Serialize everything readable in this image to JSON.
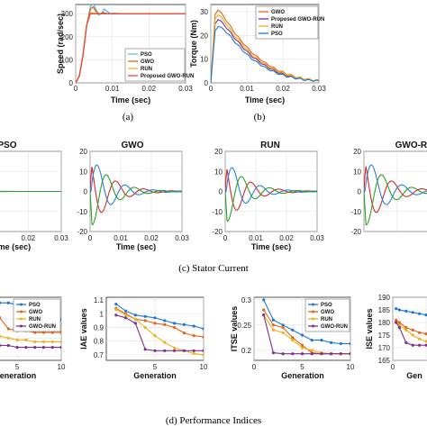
{
  "captions": {
    "a": "(a)",
    "b": "(b)",
    "c": "(c) Stator Current",
    "d": "(d) Performance Indices"
  },
  "colors": {
    "PSO": "#1f77d4",
    "GWO": "#e5631a",
    "RUN": "#edb120",
    "GWO-RUN": "#7e2f8e",
    "phaseA": "#d62728",
    "phaseB": "#2c7fd4",
    "phaseC": "#2ca02c",
    "speedPSO": "#4dbeee",
    "speedFinal": "#e64a3c"
  },
  "chart_data": [
    {
      "id": "speed",
      "type": "line",
      "xlabel": "Time (sec)",
      "ylabel": "Speed (rad/sec)",
      "xticks": [
        "0",
        "0.01",
        "0.02",
        "0.03"
      ],
      "yticks": [
        "0",
        "100",
        "200",
        "300"
      ],
      "xlim": [
        0,
        0.03
      ],
      "ylim": [
        0,
        340
      ],
      "grid": true,
      "legend": [
        "PSO",
        "GWO",
        "RUN",
        "Proposed GWO-RUN"
      ],
      "legend_position": "bottom-right",
      "series": [
        {
          "name": "PSO",
          "x": [
            0,
            0.001,
            0.002,
            0.003,
            0.004,
            0.0048,
            0.0055,
            0.0062,
            0.007,
            0.0078,
            0.0086,
            0.0095,
            0.0105,
            0.012,
            0.03
          ],
          "y": [
            0,
            30,
            120,
            250,
            330,
            345,
            320,
            295,
            300,
            320,
            310,
            300,
            302,
            300,
            300
          ]
        },
        {
          "name": "GWO",
          "x": [
            0,
            0.001,
            0.002,
            0.003,
            0.004,
            0.0048,
            0.0055,
            0.0065,
            0.0075,
            0.0085,
            0.03
          ],
          "y": [
            0,
            30,
            120,
            250,
            320,
            330,
            310,
            298,
            305,
            300,
            300
          ]
        },
        {
          "name": "RUN",
          "x": [
            0,
            0.001,
            0.002,
            0.003,
            0.004,
            0.0048,
            0.006,
            0.03
          ],
          "y": [
            0,
            30,
            120,
            250,
            305,
            302,
            300,
            300
          ]
        },
        {
          "name": "Proposed GWO-RUN",
          "x": [
            0,
            0.001,
            0.002,
            0.003,
            0.004,
            0.0045,
            0.03
          ],
          "y": [
            0,
            30,
            120,
            250,
            300,
            300,
            300
          ]
        }
      ]
    },
    {
      "id": "torque",
      "type": "line",
      "xlabel": "Time (sec)",
      "ylabel": "Torque (Nm)",
      "xticks": [
        "0",
        "0.01",
        "0.02",
        "0.03"
      ],
      "yticks": [
        "0",
        "10",
        "20",
        "30"
      ],
      "xlim": [
        0,
        0.03
      ],
      "ylim": [
        0,
        33
      ],
      "grid": true,
      "legend": [
        "GWO",
        "Proposed GWO-RUN",
        "RUN",
        "PSO"
      ],
      "legend_position": "top-right",
      "series": [
        {
          "name": "GWO",
          "x": [
            0,
            0.0012,
            0.002,
            0.004,
            0.006,
            0.008,
            0.01,
            0.012,
            0.015,
            0.018,
            0.021,
            0.024,
            0.027,
            0.03
          ],
          "y": [
            0,
            29,
            31,
            27,
            22.5,
            18.5,
            15,
            12,
            8.5,
            5.8,
            3.8,
            2.4,
            1.5,
            1
          ]
        },
        {
          "name": "Proposed GWO-RUN",
          "x": [
            0,
            0.0012,
            0.002,
            0.004,
            0.006,
            0.008,
            0.01,
            0.012,
            0.015,
            0.018,
            0.021,
            0.024,
            0.027,
            0.03
          ],
          "y": [
            0,
            25,
            27,
            24,
            20,
            16.5,
            13.2,
            10.5,
            7.3,
            4.9,
            3.2,
            2.1,
            1.3,
            0.9
          ]
        },
        {
          "name": "RUN",
          "x": [
            0,
            0.0012,
            0.002,
            0.004,
            0.006,
            0.008,
            0.01,
            0.012,
            0.015,
            0.018,
            0.021,
            0.024,
            0.027,
            0.03
          ],
          "y": [
            0,
            27,
            29,
            25.5,
            21,
            17.5,
            14,
            11.2,
            7.8,
            5.3,
            3.5,
            2.3,
            1.4,
            1
          ]
        },
        {
          "name": "PSO",
          "x": [
            0,
            0.0012,
            0.002,
            0.004,
            0.006,
            0.008,
            0.01,
            0.012,
            0.015,
            0.018,
            0.021,
            0.024,
            0.027,
            0.03
          ],
          "y": [
            0,
            22,
            24,
            22,
            18.5,
            15,
            12,
            9.5,
            6.5,
            4.3,
            2.8,
            1.8,
            1.1,
            0.8
          ]
        }
      ]
    },
    {
      "id": "current-pso",
      "type": "line",
      "title": "PSO",
      "xlabel": "Time (sec)",
      "xticks": [
        "0.02",
        "0.03"
      ],
      "decay": 0.0055,
      "amplitude": 0.55,
      "grid": true
    },
    {
      "id": "current-gwo",
      "type": "line",
      "title": "GWO",
      "xlabel": "Time (sec)",
      "xticks": [
        "0",
        "0.01",
        "0.02",
        "0.03"
      ],
      "yticks": [
        "-20",
        "-10",
        "0",
        "10",
        "20"
      ],
      "ylim": [
        -20,
        20
      ],
      "amplitude": 19,
      "decay": 0.0065,
      "grid": true
    },
    {
      "id": "current-run",
      "type": "line",
      "title": "RUN",
      "xlabel": "Time (sec)",
      "xticks": [
        "0",
        "0.01",
        "0.02",
        "0.03"
      ],
      "yticks": [
        "-20",
        "-10",
        "0",
        "10",
        "20"
      ],
      "ylim": [
        -20,
        20
      ],
      "amplitude": 17,
      "decay": 0.0065,
      "grid": true
    },
    {
      "id": "current-gworun",
      "type": "line",
      "title": "GWO-RU",
      "xlabel": "Time (sec)",
      "yticks": [
        "-20",
        "-10",
        "0",
        "10",
        "20"
      ],
      "ylim": [
        -20,
        20
      ],
      "amplitude": 19,
      "decay": 0.0065,
      "grid": true
    },
    {
      "id": "perf-partial",
      "type": "line",
      "xlabel": "eneration",
      "xticks": [
        "5",
        "10"
      ],
      "xlim": [
        1,
        10
      ],
      "ylim": [
        0.28,
        0.62
      ],
      "grid": true,
      "legend": [
        "PSO",
        "GWO",
        "RUN",
        "GWO-RUN"
      ],
      "legend_position": "top-right",
      "series": [
        {
          "name": "PSO",
          "x": [
            1,
            2,
            3,
            4,
            5,
            6,
            7,
            8,
            9,
            10
          ],
          "y": [
            0.62,
            0.6,
            0.59,
            0.59,
            0.58,
            0.56,
            0.55,
            0.54,
            0.52,
            0.5
          ]
        },
        {
          "name": "GWO",
          "x": [
            1,
            2,
            3,
            4,
            5,
            6,
            7,
            8,
            9,
            10
          ],
          "y": [
            0.53,
            0.52,
            0.51,
            0.45,
            0.44,
            0.44,
            0.43,
            0.43,
            0.43,
            0.43
          ]
        },
        {
          "name": "RUN",
          "x": [
            1,
            2,
            3,
            4,
            5,
            6,
            7,
            8,
            9,
            10
          ],
          "y": [
            0.43,
            0.42,
            0.41,
            0.4,
            0.39,
            0.39,
            0.38,
            0.38,
            0.38,
            0.38
          ]
        },
        {
          "name": "GWO-RUN",
          "x": [
            1,
            2,
            3,
            4,
            5,
            6,
            7,
            8,
            9,
            10
          ],
          "y": [
            0.38,
            0.37,
            0.36,
            0.36,
            0.35,
            0.35,
            0.35,
            0.35,
            0.35,
            0.35
          ]
        }
      ]
    },
    {
      "id": "iae",
      "type": "line",
      "xlabel": "Generation",
      "ylabel": "IAE values",
      "xticks": [
        "5",
        "10"
      ],
      "yticks": [
        "0.7",
        "0.8",
        "0.9",
        "1",
        "1.1"
      ],
      "xlim": [
        0,
        10
      ],
      "ylim": [
        0.66,
        1.12
      ],
      "grid": true,
      "series": [
        {
          "name": "PSO",
          "x": [
            1,
            2,
            3,
            4,
            5,
            6,
            7,
            8,
            9,
            10
          ],
          "y": [
            1.07,
            1.02,
            0.99,
            0.98,
            0.97,
            0.95,
            0.93,
            0.92,
            0.91,
            0.89
          ]
        },
        {
          "name": "GWO",
          "x": [
            1,
            2,
            3,
            4,
            5,
            6,
            7,
            8,
            9,
            10
          ],
          "y": [
            1.04,
            1.0,
            0.96,
            0.95,
            0.93,
            0.92,
            0.9,
            0.86,
            0.84,
            0.83
          ]
        },
        {
          "name": "RUN",
          "x": [
            1,
            2,
            3,
            4,
            5,
            6,
            7,
            8,
            9,
            10
          ],
          "y": [
            1.03,
            0.99,
            0.96,
            0.9,
            0.84,
            0.79,
            0.75,
            0.73,
            0.71,
            0.7
          ]
        },
        {
          "name": "GWO-RUN",
          "x": [
            1,
            2,
            3,
            4,
            5,
            6,
            7,
            8,
            9,
            10
          ],
          "y": [
            0.99,
            0.97,
            0.93,
            0.74,
            0.73,
            0.73,
            0.73,
            0.73,
            0.73,
            0.73
          ]
        }
      ]
    },
    {
      "id": "itse",
      "type": "line",
      "xlabel": "Generation",
      "ylabel": "ITSE values",
      "xticks": [
        "0",
        "5",
        "10"
      ],
      "yticks": [
        "0.2",
        "0.25",
        "0.3"
      ],
      "xlim": [
        0,
        10
      ],
      "ylim": [
        0.18,
        0.305
      ],
      "grid": true,
      "legend": [
        "PSO",
        "GWO",
        "RUN",
        "GWO-RUN"
      ],
      "legend_position": "top-right",
      "series": [
        {
          "name": "PSO",
          "x": [
            1,
            2,
            3,
            4,
            5,
            6,
            7,
            8,
            9,
            10
          ],
          "y": [
            0.3,
            0.26,
            0.25,
            0.24,
            0.23,
            0.22,
            0.22,
            0.215,
            0.213,
            0.213
          ]
        },
        {
          "name": "GWO",
          "x": [
            1,
            2,
            3,
            4,
            5,
            6,
            7,
            8,
            9,
            10
          ],
          "y": [
            0.28,
            0.25,
            0.245,
            0.225,
            0.21,
            0.195,
            0.193,
            0.193,
            0.193,
            0.193
          ]
        },
        {
          "name": "RUN",
          "x": [
            1,
            2,
            3,
            4,
            5,
            6,
            7,
            8,
            9,
            10
          ],
          "y": [
            0.27,
            0.24,
            0.235,
            0.22,
            0.205,
            0.2,
            0.195,
            0.193,
            0.193,
            0.193
          ]
        },
        {
          "name": "GWO-RUN",
          "x": [
            1,
            2,
            3,
            4,
            5,
            6,
            7,
            8,
            9,
            10
          ],
          "y": [
            0.27,
            0.195,
            0.193,
            0.193,
            0.193,
            0.193,
            0.193,
            0.193,
            0.193,
            0.193
          ]
        }
      ]
    },
    {
      "id": "ise",
      "type": "line",
      "xlabel": "Gen",
      "ylabel": "ISE values",
      "xticks": [
        "0"
      ],
      "yticks": [
        "165",
        "170",
        "175",
        "180",
        "185",
        "190"
      ],
      "xlim": [
        0,
        10
      ],
      "ylim": [
        165,
        190
      ],
      "grid": true,
      "series": [
        {
          "name": "PSO",
          "x": [
            0.5,
            1,
            2,
            3,
            4,
            5,
            6,
            7,
            8,
            9,
            10
          ],
          "y": [
            185.5,
            185,
            184.5,
            184,
            183.5,
            183,
            182.5,
            182,
            181.5,
            181,
            180.5
          ]
        },
        {
          "name": "GWO",
          "x": [
            0.5,
            1,
            2,
            3,
            4,
            5,
            6,
            7,
            8,
            9,
            10
          ],
          "y": [
            181,
            180,
            178,
            177,
            176,
            175.5,
            175,
            174.5,
            174,
            174,
            174
          ]
        },
        {
          "name": "RUN",
          "x": [
            0.5,
            1,
            2,
            3,
            4,
            5,
            6,
            7,
            8,
            9,
            10
          ],
          "y": [
            180,
            179,
            177,
            175,
            173.5,
            172.5,
            172,
            171.5,
            171,
            171,
            171
          ]
        },
        {
          "name": "GWO-RUN",
          "x": [
            0.5,
            1,
            2,
            3,
            4,
            5,
            6,
            7,
            8,
            9,
            10
          ],
          "y": [
            180,
            178,
            172,
            171,
            171,
            171,
            171,
            171,
            171,
            171,
            171
          ]
        }
      ]
    }
  ]
}
